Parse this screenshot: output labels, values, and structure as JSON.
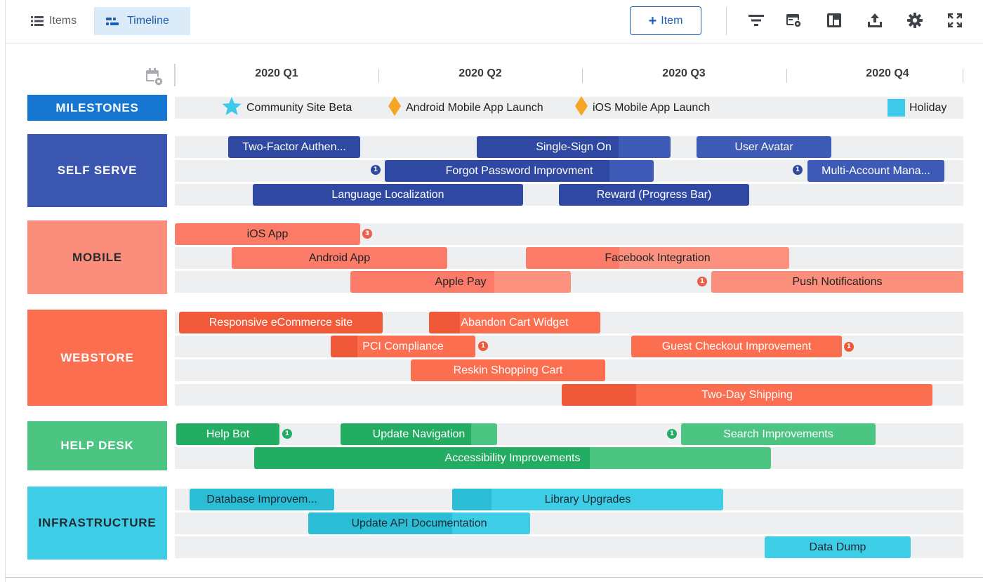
{
  "toolbar": {
    "items_tab": "Items",
    "timeline_tab": "Timeline",
    "add_item_label": "Item",
    "tools": [
      "filter-icon",
      "card-settings-icon",
      "layout-icon",
      "export-icon",
      "gear-icon",
      "fullscreen-icon"
    ]
  },
  "quarters": [
    "2020 Q1",
    "2020 Q2",
    "2020 Q3",
    "2020 Q4"
  ],
  "milestones": {
    "label": "MILESTONES",
    "color": "#1677d2",
    "items": [
      {
        "icon": "star-icon",
        "label": "Community Site Beta",
        "color": "#3ec8ea"
      },
      {
        "icon": "diamond-icon",
        "label": "Android Mobile App Launch",
        "color": "#f5a623"
      },
      {
        "icon": "diamond-icon",
        "label": "iOS Mobile App Launch",
        "color": "#f5a623"
      },
      {
        "icon": "square-icon",
        "label": "Holiday",
        "color": "#3ec8ea"
      }
    ]
  },
  "groups": [
    {
      "label": "SELF SERVE",
      "color": "#3a56b0",
      "text_color": "#ffffff"
    },
    {
      "label": "MOBILE",
      "color": "#fb8d7c",
      "text_color": "#2b2b2b"
    },
    {
      "label": "WEBSTORE",
      "color": "#fb6e4f",
      "text_color": "#ffffff"
    },
    {
      "label": "HELP DESK",
      "color": "#4cc482",
      "text_color": "#ffffff"
    },
    {
      "label": "INFRASTRUCTURE",
      "color": "#3ecde6",
      "text_color": "#1d2b33"
    }
  ],
  "bars": {
    "self_serve": [
      {
        "label": "Two-Factor Authen..."
      },
      {
        "label": "Single-Sign On"
      },
      {
        "label": "User Avatar"
      },
      {
        "label": "Forgot Password Improvment",
        "badge": "1"
      },
      {
        "label": "Multi-Account Mana...",
        "badge": "1"
      },
      {
        "label": "Language Localization"
      },
      {
        "label": "Reward (Progress Bar)"
      }
    ],
    "mobile": [
      {
        "label": "iOS App",
        "badge": "3"
      },
      {
        "label": "Android App"
      },
      {
        "label": "Facebook Integration"
      },
      {
        "label": "Apple Pay"
      },
      {
        "label": "Push Notifications",
        "badge": "1"
      }
    ],
    "webstore": [
      {
        "label": "Responsive eCommerce site"
      },
      {
        "label": "Abandon Cart Widget"
      },
      {
        "label": "PCI Compliance",
        "badge": "1"
      },
      {
        "label": "Guest Checkout Improvement",
        "badge": "1"
      },
      {
        "label": "Reskin Shopping Cart"
      },
      {
        "label": "Two-Day Shipping"
      }
    ],
    "help_desk": [
      {
        "label": "Help Bot",
        "badge": "1"
      },
      {
        "label": "Update Navigation"
      },
      {
        "label": "Search Improvements",
        "badge": "1"
      },
      {
        "label": "Accessibility Improvements"
      }
    ],
    "infrastructure": [
      {
        "label": "Database Improvem..."
      },
      {
        "label": "Library Upgrades"
      },
      {
        "label": "Update API Documentation"
      },
      {
        "label": "Data Dump"
      }
    ]
  }
}
